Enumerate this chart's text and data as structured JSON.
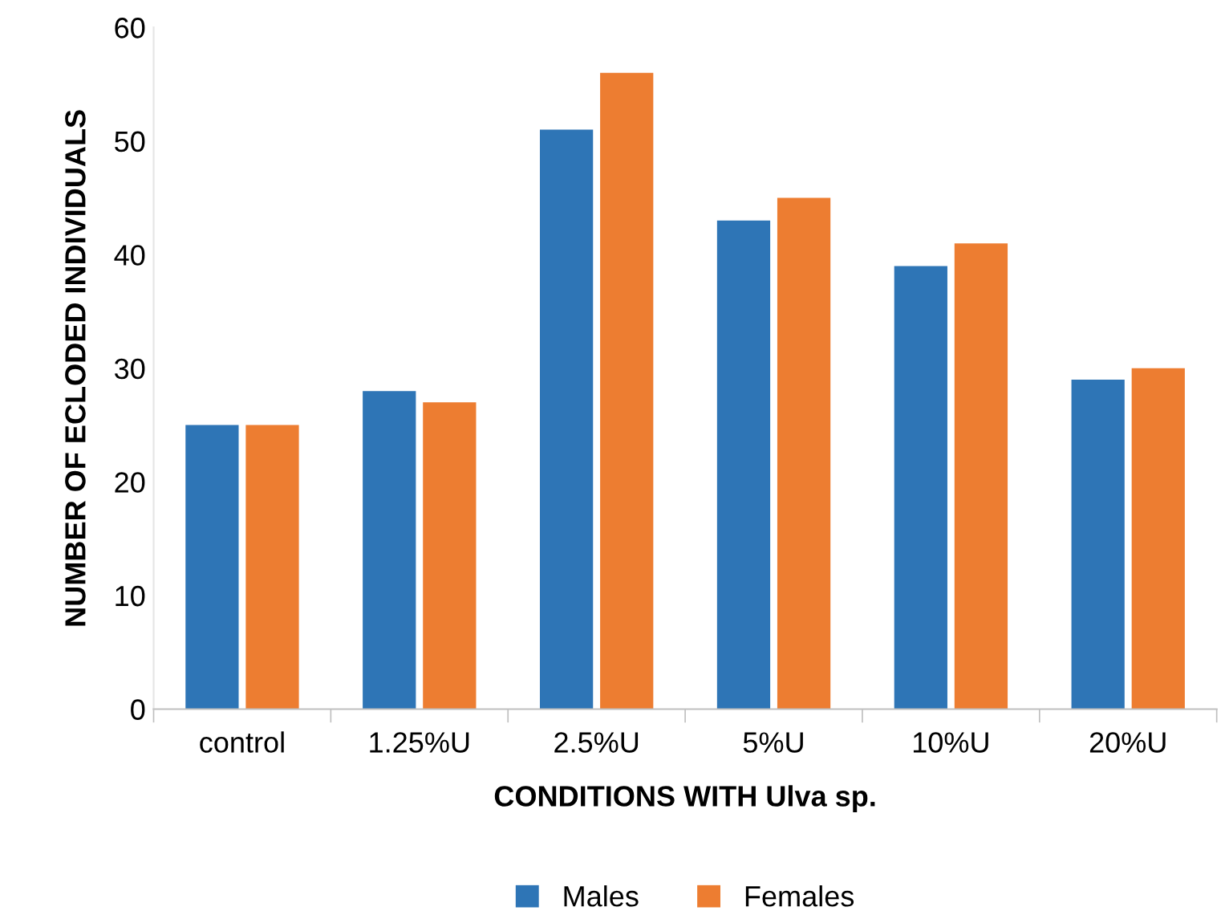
{
  "chart_data": {
    "type": "bar",
    "xlabel": "CONDITIONS WITH Ulva sp.",
    "ylabel": "NUMBER OF ECLODED INDIVIDUALS",
    "categories": [
      "control",
      "1.25%U",
      "2.5%U",
      "5%U",
      "10%U",
      "20%U"
    ],
    "series": [
      {
        "name": "Males",
        "color": "#2e75b6",
        "values": [
          25,
          28,
          51,
          43,
          39,
          29
        ]
      },
      {
        "name": "Females",
        "color": "#ed7d31",
        "values": [
          25,
          27,
          56,
          45,
          41,
          30
        ]
      }
    ],
    "ylim": [
      0,
      60
    ],
    "yticks": [
      0,
      10,
      20,
      30,
      40,
      50,
      60
    ],
    "grid": false,
    "legend": "bottom"
  }
}
